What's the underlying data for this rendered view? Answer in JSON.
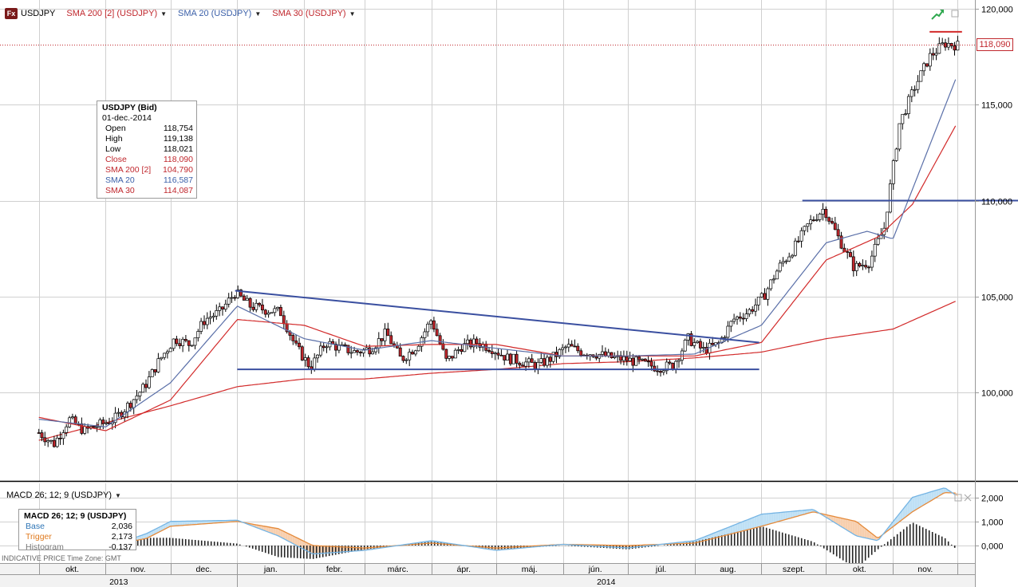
{
  "legend": {
    "symbol": "USDJPY",
    "sma200": "SMA 200 [2] (USDJPY)",
    "sma20": "SMA 20 (USDJPY)",
    "sma30": "SMA 30 (USDJPY)",
    "fx_icon": "Fx"
  },
  "info_box": {
    "title": "USDJPY (Bid)",
    "date": "01-dec.-2014",
    "rows": [
      {
        "label": "Open",
        "value": "118,754",
        "color": "#000000"
      },
      {
        "label": "High",
        "value": "119,138",
        "color": "#000000"
      },
      {
        "label": "Low",
        "value": "118,021",
        "color": "#000000"
      },
      {
        "label": "Close",
        "value": "118,090",
        "color": "#c0272d"
      },
      {
        "label": "SMA 200 [2]",
        "value": "104,790",
        "color": "#c0272d"
      },
      {
        "label": "SMA 20",
        "value": "116,587",
        "color": "#3a5fa8"
      },
      {
        "label": "SMA 30",
        "value": "114,087",
        "color": "#c0272d"
      }
    ]
  },
  "current_price": "118,090",
  "macd": {
    "header": "MACD 26; 12; 9 (USDJPY)",
    "title": "MACD 26; 12; 9 (USDJPY)",
    "rows": [
      {
        "label": "Base",
        "value": "2,036",
        "color": "#2e75b6"
      },
      {
        "label": "Trigger",
        "value": "2,173",
        "color": "#e07b20"
      },
      {
        "label": "Histogram",
        "value": "-0,137",
        "color": "#777777"
      }
    ]
  },
  "footnote": "INDICATIVE PRICE    Time Zone: GMT",
  "colors": {
    "up_candle": "#ffffff",
    "down_candle": "#c0272d",
    "sma20": "#5a6fa8",
    "sma30": "#d22a2a",
    "sma200": "#d22a2a",
    "trendline": "#3a4fa0",
    "macd_base": "#74b4e4",
    "macd_trigger": "#e58a3a",
    "grid": "#d0d0d0"
  },
  "chart_data": [
    {
      "type": "candlestick",
      "title": "USDJPY",
      "ylim": [
        96,
        120.5
      ],
      "y_ticks": [
        "100,000",
        "105,000",
        "110,000",
        "115,000",
        "120,000"
      ],
      "y_tick_values": [
        100,
        105,
        110,
        115,
        120
      ],
      "x_month_labels": [
        "okt.",
        "nov.",
        "dec.",
        "jan.",
        "febr.",
        "márc.",
        "ápr.",
        "máj.",
        "jún.",
        "júl.",
        "aug.",
        "szept.",
        "okt.",
        "nov."
      ],
      "x_year_labels": [
        "2013",
        "2014"
      ],
      "close_path": [
        [
          "2013-10-01",
          97.9
        ],
        [
          "2013-10-08",
          97.3
        ],
        [
          "2013-10-15",
          98.6
        ],
        [
          "2013-10-22",
          98.0
        ],
        [
          "2013-10-29",
          98.3
        ],
        [
          "2013-11-05",
          98.6
        ],
        [
          "2013-11-12",
          99.4
        ],
        [
          "2013-11-19",
          100.3
        ],
        [
          "2013-11-26",
          101.7
        ],
        [
          "2013-12-03",
          102.8
        ],
        [
          "2013-12-10",
          102.5
        ],
        [
          "2013-12-17",
          103.8
        ],
        [
          "2013-12-24",
          104.2
        ],
        [
          "2013-12-31",
          105.2
        ],
        [
          "2014-01-07",
          104.5
        ],
        [
          "2014-01-14",
          104.3
        ],
        [
          "2014-01-21",
          104.2
        ],
        [
          "2014-01-28",
          102.4
        ],
        [
          "2014-02-04",
          101.3
        ],
        [
          "2014-02-11",
          102.6
        ],
        [
          "2014-02-18",
          102.3
        ],
        [
          "2014-02-25",
          102.1
        ],
        [
          "2014-03-04",
          102.3
        ],
        [
          "2014-03-11",
          103.1
        ],
        [
          "2014-03-18",
          101.7
        ],
        [
          "2014-03-25",
          102.4
        ],
        [
          "2014-04-01",
          103.8
        ],
        [
          "2014-04-08",
          101.6
        ],
        [
          "2014-04-15",
          102.4
        ],
        [
          "2014-04-22",
          102.6
        ],
        [
          "2014-04-29",
          102.3
        ],
        [
          "2014-05-06",
          101.8
        ],
        [
          "2014-05-13",
          101.6
        ],
        [
          "2014-05-20",
          101.4
        ],
        [
          "2014-05-27",
          101.8
        ],
        [
          "2014-06-03",
          102.4
        ],
        [
          "2014-06-10",
          102.1
        ],
        [
          "2014-06-17",
          102.0
        ],
        [
          "2014-06-24",
          101.8
        ],
        [
          "2014-07-01",
          101.7
        ],
        [
          "2014-07-08",
          101.5
        ],
        [
          "2014-07-15",
          101.3
        ],
        [
          "2014-07-22",
          101.4
        ],
        [
          "2014-07-29",
          102.8
        ],
        [
          "2014-08-05",
          102.2
        ],
        [
          "2014-08-12",
          102.5
        ],
        [
          "2014-08-19",
          103.8
        ],
        [
          "2014-08-26",
          104.2
        ],
        [
          "2014-09-02",
          105.0
        ],
        [
          "2014-09-09",
          106.5
        ],
        [
          "2014-09-16",
          107.5
        ],
        [
          "2014-09-23",
          108.8
        ],
        [
          "2014-09-30",
          109.6
        ],
        [
          "2014-10-07",
          108.0
        ],
        [
          "2014-10-14",
          106.5
        ],
        [
          "2014-10-21",
          106.8
        ],
        [
          "2014-10-28",
          108.6
        ],
        [
          "2014-11-04",
          114.0
        ],
        [
          "2014-11-11",
          115.9
        ],
        [
          "2014-11-18",
          117.5
        ],
        [
          "2014-11-25",
          118.2
        ],
        [
          "2014-12-01",
          118.09
        ]
      ],
      "sma20": [
        [
          "2013-10-01",
          98.6
        ],
        [
          "2013-11-01",
          98.2
        ],
        [
          "2013-12-01",
          100.5
        ],
        [
          "2014-01-01",
          104.5
        ],
        [
          "2014-02-01",
          102.8
        ],
        [
          "2014-03-01",
          102.2
        ],
        [
          "2014-04-01",
          102.7
        ],
        [
          "2014-05-01",
          102.3
        ],
        [
          "2014-06-01",
          101.9
        ],
        [
          "2014-07-01",
          101.9
        ],
        [
          "2014-08-01",
          102.0
        ],
        [
          "2014-09-01",
          103.5
        ],
        [
          "2014-10-01",
          107.8
        ],
        [
          "2014-10-20",
          108.4
        ],
        [
          "2014-11-01",
          108.0
        ],
        [
          "2014-12-01",
          116.6
        ]
      ],
      "sma30": [
        [
          "2013-10-01",
          98.7
        ],
        [
          "2013-11-01",
          98.0
        ],
        [
          "2013-12-01",
          99.6
        ],
        [
          "2014-01-01",
          103.8
        ],
        [
          "2014-02-01",
          103.5
        ],
        [
          "2014-03-01",
          102.4
        ],
        [
          "2014-04-01",
          102.5
        ],
        [
          "2014-05-01",
          102.5
        ],
        [
          "2014-06-01",
          101.9
        ],
        [
          "2014-07-01",
          101.9
        ],
        [
          "2014-08-01",
          101.9
        ],
        [
          "2014-09-01",
          102.6
        ],
        [
          "2014-10-01",
          106.9
        ],
        [
          "2014-10-25",
          108.1
        ],
        [
          "2014-11-10",
          109.8
        ],
        [
          "2014-12-01",
          114.1
        ]
      ],
      "sma200": [
        [
          "2013-10-01",
          97.5
        ],
        [
          "2013-12-01",
          99.3
        ],
        [
          "2014-01-01",
          100.3
        ],
        [
          "2014-02-01",
          100.7
        ],
        [
          "2014-03-01",
          100.7
        ],
        [
          "2014-04-01",
          101.0
        ],
        [
          "2014-05-01",
          101.2
        ],
        [
          "2014-06-01",
          101.5
        ],
        [
          "2014-07-01",
          101.6
        ],
        [
          "2014-08-01",
          101.8
        ],
        [
          "2014-09-01",
          102.1
        ],
        [
          "2014-10-01",
          102.8
        ],
        [
          "2014-11-01",
          103.3
        ],
        [
          "2014-12-01",
          104.8
        ]
      ],
      "trendlines": [
        {
          "from": [
            "2013-12-31",
            105.3
          ],
          "to": [
            "2014-08-31",
            102.6
          ]
        },
        {
          "from": [
            "2014-01-01",
            101.2
          ],
          "to": [
            "2014-08-31",
            101.2
          ]
        },
        {
          "from": [
            "2014-09-20",
            110.0
          ],
          "to": [
            "2014-12-31",
            110.0
          ]
        },
        {
          "from": [
            "2014-11-18",
            118.8
          ],
          "to": [
            "2014-12-03",
            118.8
          ]
        }
      ]
    },
    {
      "type": "line",
      "title": "MACD 26; 12; 9 (USDJPY)",
      "ylim": [
        -0.6,
        2.5
      ],
      "y_ticks": [
        "0,000",
        "1,000",
        "2,000"
      ],
      "y_tick_values": [
        0,
        1,
        2
      ],
      "series": [
        {
          "name": "Base",
          "values": [
            [
              "2013-10-01",
              -0.1
            ],
            [
              "2013-11-01",
              -0.1
            ],
            [
              "2013-11-20",
              0.5
            ],
            [
              "2013-12-01",
              1.0
            ],
            [
              "2014-01-01",
              1.05
            ],
            [
              "2014-01-20",
              0.4
            ],
            [
              "2014-02-05",
              -0.35
            ],
            [
              "2014-03-01",
              -0.2
            ],
            [
              "2014-04-01",
              0.2
            ],
            [
              "2014-05-01",
              -0.2
            ],
            [
              "2014-06-01",
              0.05
            ],
            [
              "2014-07-01",
              -0.1
            ],
            [
              "2014-08-01",
              0.2
            ],
            [
              "2014-09-01",
              1.3
            ],
            [
              "2014-09-25",
              1.5
            ],
            [
              "2014-10-15",
              0.4
            ],
            [
              "2014-10-25",
              0.2
            ],
            [
              "2014-11-10",
              2.0
            ],
            [
              "2014-11-25",
              2.4
            ],
            [
              "2014-12-01",
              2.036
            ]
          ]
        },
        {
          "name": "Trigger",
          "values": [
            [
              "2013-10-01",
              0.0
            ],
            [
              "2013-11-01",
              -0.05
            ],
            [
              "2013-11-20",
              0.3
            ],
            [
              "2013-12-01",
              0.8
            ],
            [
              "2014-01-01",
              1.0
            ],
            [
              "2014-01-20",
              0.7
            ],
            [
              "2014-02-05",
              0.0
            ],
            [
              "2014-03-01",
              -0.1
            ],
            [
              "2014-04-01",
              0.1
            ],
            [
              "2014-05-01",
              -0.1
            ],
            [
              "2014-06-01",
              0.05
            ],
            [
              "2014-07-01",
              0.0
            ],
            [
              "2014-08-01",
              0.1
            ],
            [
              "2014-09-01",
              0.8
            ],
            [
              "2014-09-25",
              1.4
            ],
            [
              "2014-10-15",
              1.0
            ],
            [
              "2014-10-25",
              0.3
            ],
            [
              "2014-11-10",
              1.4
            ],
            [
              "2014-11-25",
              2.2
            ],
            [
              "2014-12-01",
              2.173
            ]
          ]
        }
      ]
    }
  ]
}
